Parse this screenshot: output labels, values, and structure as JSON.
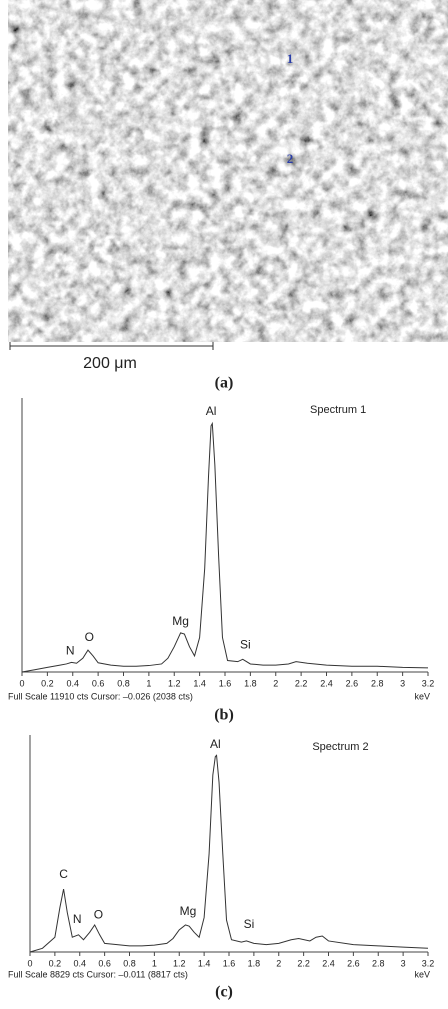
{
  "image": {
    "markers": [
      "1",
      "2"
    ],
    "scale_label": "200 μm",
    "panel_label": "(a)"
  },
  "chart_data": [
    {
      "type": "line",
      "title": "Spectrum 1",
      "panel_label": "(b)",
      "x_label": "keV",
      "note": "Full Scale 11910 cts Cursor: –0.026 (2038 cts)",
      "xlim": [
        0,
        3.2
      ],
      "xticks": [
        0,
        0.2,
        0.4,
        0.6,
        0.8,
        1,
        1.2,
        1.4,
        1.6,
        1.8,
        2,
        2.2,
        2.4,
        2.6,
        2.8,
        3,
        3.2
      ],
      "ylim": [
        0,
        11910
      ],
      "color": "#333333",
      "x": [
        0,
        0.1,
        0.2,
        0.25,
        0.3,
        0.35,
        0.39,
        0.43,
        0.48,
        0.52,
        0.56,
        0.6,
        0.7,
        0.8,
        0.9,
        1.0,
        1.1,
        1.15,
        1.2,
        1.25,
        1.28,
        1.32,
        1.36,
        1.4,
        1.44,
        1.47,
        1.49,
        1.5,
        1.52,
        1.55,
        1.58,
        1.62,
        1.7,
        1.74,
        1.8,
        1.9,
        2.0,
        2.1,
        2.16,
        2.25,
        2.4,
        2.6,
        2.8,
        3.0,
        3.2
      ],
      "values": [
        0,
        100,
        200,
        250,
        300,
        350,
        420,
        380,
        600,
        950,
        700,
        400,
        300,
        250,
        250,
        280,
        350,
        600,
        1100,
        1700,
        1650,
        1100,
        700,
        1500,
        4500,
        8500,
        10700,
        10800,
        9000,
        5000,
        1500,
        500,
        450,
        550,
        350,
        300,
        300,
        350,
        450,
        380,
        300,
        250,
        250,
        200,
        180
      ],
      "annotations": [
        {
          "text": "N",
          "x": 0.38,
          "y": 900
        },
        {
          "text": "O",
          "x": 0.53,
          "y": 1480
        },
        {
          "text": "Mg",
          "x": 1.25,
          "y": 2170
        },
        {
          "text": "Al",
          "x": 1.49,
          "y": 11300
        },
        {
          "text": "Si",
          "x": 1.76,
          "y": 1170
        }
      ]
    },
    {
      "type": "line",
      "title": "Spectrum 2",
      "panel_label": "(c)",
      "x_label": "keV",
      "note": "Full Scale 8829 cts Cursor: –0.011 (8817 cts)",
      "xlim": [
        0,
        3.2
      ],
      "xticks": [
        0,
        0.2,
        0.4,
        0.6,
        0.8,
        1,
        1.2,
        1.4,
        1.6,
        1.8,
        2,
        2.2,
        2.4,
        2.6,
        2.8,
        3,
        3.2
      ],
      "ylim": [
        0,
        8829
      ],
      "color": "#333333",
      "x": [
        0,
        0.1,
        0.2,
        0.24,
        0.27,
        0.3,
        0.34,
        0.39,
        0.43,
        0.48,
        0.52,
        0.56,
        0.6,
        0.7,
        0.8,
        0.9,
        1.0,
        1.1,
        1.15,
        1.2,
        1.25,
        1.28,
        1.32,
        1.36,
        1.4,
        1.44,
        1.47,
        1.49,
        1.5,
        1.52,
        1.55,
        1.58,
        1.62,
        1.7,
        1.74,
        1.8,
        1.9,
        2.0,
        2.1,
        2.16,
        2.25,
        2.3,
        2.35,
        2.4,
        2.6,
        2.8,
        3.0,
        3.2
      ],
      "values": [
        0,
        150,
        600,
        1800,
        2560,
        1600,
        600,
        700,
        500,
        800,
        1100,
        700,
        350,
        300,
        250,
        250,
        280,
        350,
        550,
        900,
        1100,
        1050,
        800,
        600,
        1400,
        4000,
        7200,
        7950,
        8000,
        6900,
        4000,
        1300,
        500,
        400,
        450,
        350,
        300,
        350,
        500,
        550,
        450,
        600,
        650,
        450,
        300,
        250,
        200,
        150
      ],
      "annotations": [
        {
          "text": "C",
          "x": 0.27,
          "y": 3130
        },
        {
          "text": "N",
          "x": 0.38,
          "y": 1300
        },
        {
          "text": "O",
          "x": 0.55,
          "y": 1500
        },
        {
          "text": "Mg",
          "x": 1.27,
          "y": 1630
        },
        {
          "text": "Al",
          "x": 1.49,
          "y": 8420
        },
        {
          "text": "Si",
          "x": 1.76,
          "y": 1100
        }
      ]
    }
  ]
}
